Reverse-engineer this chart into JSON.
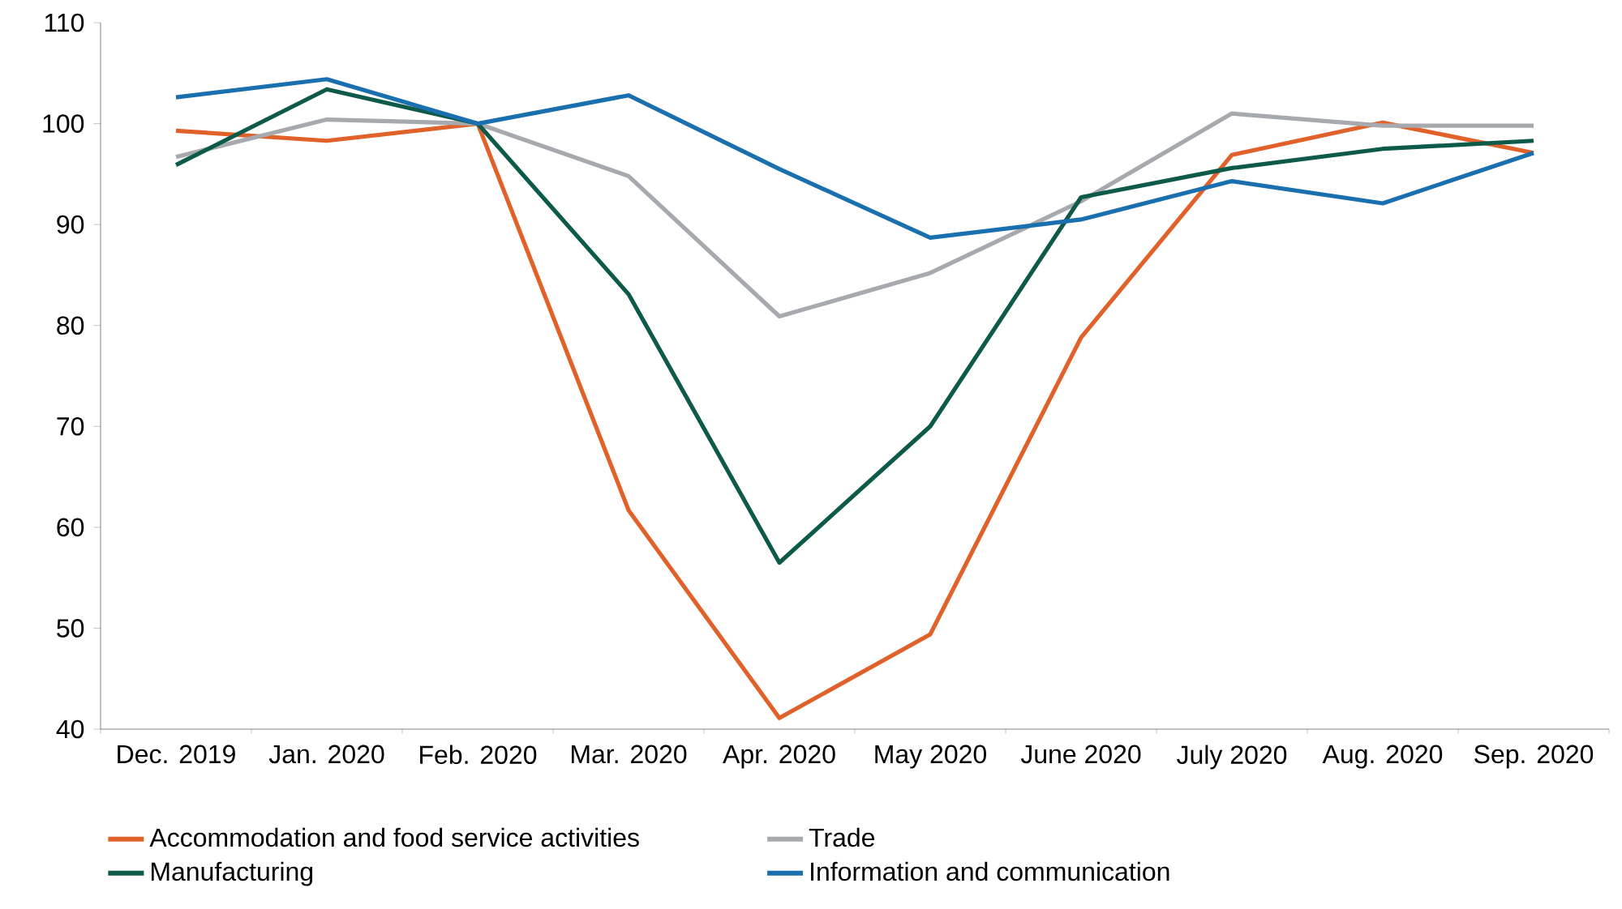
{
  "chart_data": {
    "type": "line",
    "categories": [
      "Dec. 2019",
      "Jan. 2020",
      "Feb. 2020",
      "Mar. 2020",
      "Apr. 2020",
      "May 2020",
      "June 2020",
      "July 2020",
      "Aug. 2020",
      "Sep. 2020"
    ],
    "series": [
      {
        "name": "Accommodation and food service activities",
        "color": "#e0622a",
        "values": [
          99.3,
          98.3,
          100,
          61.7,
          41.1,
          49.4,
          78.8,
          96.9,
          100.1,
          97.1
        ]
      },
      {
        "name": "Trade",
        "color": "#a6a9ad",
        "values": [
          96.7,
          100.4,
          100,
          94.8,
          80.9,
          85.2,
          92.3,
          101,
          99.8,
          99.8
        ]
      },
      {
        "name": "Manufacturing",
        "color": "#0e5a4a",
        "values": [
          95.9,
          103.4,
          100,
          83.1,
          56.5,
          70.0,
          92.7,
          95.6,
          97.5,
          98.3
        ]
      },
      {
        "name": "Information and communication",
        "color": "#1a6faf",
        "values": [
          102.6,
          104.4,
          100,
          102.8,
          95.5,
          88.7,
          90.5,
          94.3,
          92.1,
          97.1
        ]
      }
    ],
    "ylim": [
      40,
      110
    ],
    "yticks": [
      40,
      50,
      60,
      70,
      80,
      90,
      100,
      110
    ],
    "grid": false,
    "legend": "bottom",
    "marker": "none",
    "line_style": "solid"
  }
}
